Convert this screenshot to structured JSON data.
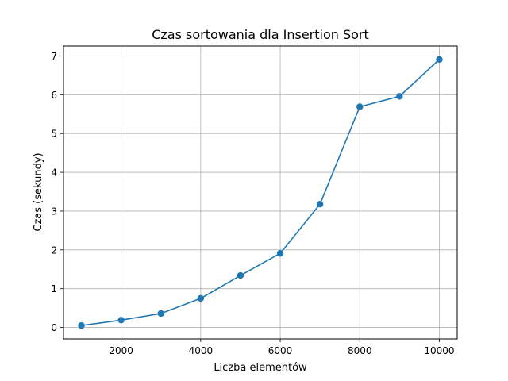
{
  "chart_data": {
    "type": "line",
    "title": "Czas sortowania dla Insertion Sort",
    "xlabel": "Liczba elementów",
    "ylabel": "Czas (sekundy)",
    "x": [
      1000,
      2000,
      3000,
      4000,
      5000,
      6000,
      7000,
      8000,
      9000,
      10000
    ],
    "series": [
      {
        "values": [
          0.05,
          0.19,
          0.36,
          0.75,
          1.34,
          1.91,
          3.18,
          5.69,
          5.96,
          6.91
        ],
        "color": "#1f77b4",
        "marker": "circle"
      }
    ],
    "xlim": [
      550,
      10450
    ],
    "ylim": [
      -0.295,
      7.255
    ],
    "xticks": [
      "2000",
      "4000",
      "6000",
      "8000",
      "10000"
    ],
    "yticks": [
      "0",
      "1",
      "2",
      "3",
      "4",
      "5",
      "6",
      "7"
    ],
    "grid": true,
    "legend": false
  }
}
